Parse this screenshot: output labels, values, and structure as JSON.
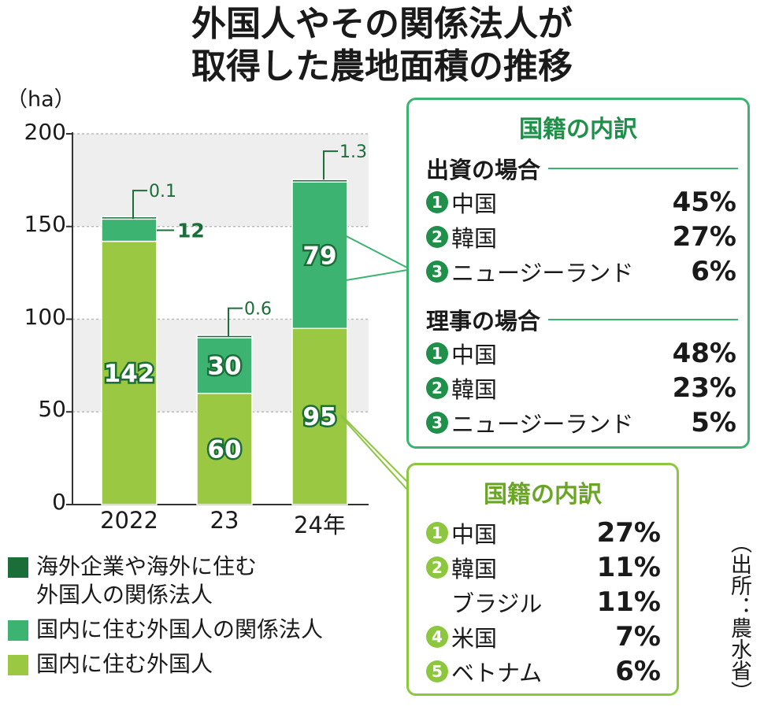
{
  "title_line1": "外国人やその関係法人が",
  "title_line2": "取得した農地面積の推移",
  "source": "（出所：農水省）",
  "colors": {
    "dark": "#1b6e38",
    "mid": "#3cb371",
    "light": "#9bc842",
    "box1_border": "#3cb371",
    "box2_border": "#8dc63f"
  },
  "chart_data": {
    "type": "bar",
    "stacked": true,
    "unit_label": "（ha）",
    "categories": [
      "2022",
      "23",
      "24年"
    ],
    "ylim": [
      0,
      200
    ],
    "yticks": [
      "0",
      "50",
      "100",
      "150",
      "200"
    ],
    "series": [
      {
        "name": "国内に住む外国人",
        "color": "#9bc842",
        "values": [
          142,
          60,
          95
        ],
        "labels": [
          "142",
          "60",
          "95"
        ]
      },
      {
        "name": "国内に住む外国人の関係法人",
        "color": "#3cb371",
        "values": [
          12,
          30,
          79
        ],
        "labels": [
          "12",
          "30",
          "79"
        ]
      },
      {
        "name": "海外企業や海外に住む\n外国人の関係法人",
        "color": "#1b6e38",
        "values": [
          0.1,
          0.6,
          1.3
        ],
        "labels": [
          "0.1",
          "0.6",
          "1.3"
        ]
      }
    ],
    "grid": "bands"
  },
  "legend": [
    {
      "label": "海外企業や海外に住む\n外国人の関係法人",
      "color": "#1b6e38"
    },
    {
      "label": "国内に住む外国人の関係法人",
      "color": "#3cb371"
    },
    {
      "label": "国内に住む外国人",
      "color": "#9bc842"
    }
  ],
  "box1": {
    "title": "国籍の内訳",
    "section1": {
      "heading": "出資の場合",
      "rows": [
        {
          "rank": "1",
          "name": "中国",
          "pct": "45%"
        },
        {
          "rank": "2",
          "name": "韓国",
          "pct": "27%"
        },
        {
          "rank": "3",
          "name": "ニュージーランド",
          "pct": "6%"
        }
      ]
    },
    "section2": {
      "heading": "理事の場合",
      "rows": [
        {
          "rank": "1",
          "name": "中国",
          "pct": "48%"
        },
        {
          "rank": "2",
          "name": "韓国",
          "pct": "23%"
        },
        {
          "rank": "3",
          "name": "ニュージーランド",
          "pct": "5%"
        }
      ]
    }
  },
  "box2": {
    "title": "国籍の内訳",
    "rows": [
      {
        "rank": "1",
        "name": "中国",
        "pct": "27%"
      },
      {
        "rank": "2",
        "name": "韓国",
        "pct": "11%"
      },
      {
        "rank": "",
        "name": "ブラジル",
        "pct": "11%"
      },
      {
        "rank": "4",
        "name": "米国",
        "pct": "7%"
      },
      {
        "rank": "5",
        "name": "ベトナム",
        "pct": "6%"
      }
    ]
  }
}
